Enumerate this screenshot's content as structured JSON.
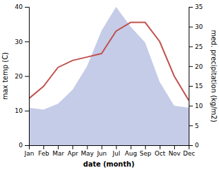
{
  "chart_data": {
    "type": "line",
    "x_label": "date (month)",
    "y_label": "max temp (C)",
    "y2_label": "med. precipitation (kg/m2)",
    "categories": [
      "Jan",
      "Feb",
      "Mar",
      "Apr",
      "May",
      "Jun",
      "Jul",
      "Aug",
      "Sep",
      "Oct",
      "Nov",
      "Dec"
    ],
    "series": [
      {
        "type": "area",
        "axis": "y2",
        "color": "#c5cce8",
        "values": [
          9.5,
          9.0,
          10.5,
          14.0,
          20.0,
          29.0,
          35.0,
          30.0,
          26.0,
          16.0,
          10.0,
          9.5
        ]
      },
      {
        "type": "line",
        "color": "#c0504d",
        "values": [
          13.5,
          17.0,
          22.5,
          24.5,
          25.5,
          26.5,
          33.0,
          35.5,
          35.5,
          30.0,
          20.0,
          13.0
        ]
      }
    ],
    "ylim": [
      0,
      40
    ],
    "yticks": [
      0,
      10,
      20,
      30,
      40
    ],
    "y2lim": [
      0,
      35
    ],
    "y2ticks": [
      0,
      5,
      10,
      15,
      20,
      25,
      30,
      35
    ],
    "grid": false
  }
}
